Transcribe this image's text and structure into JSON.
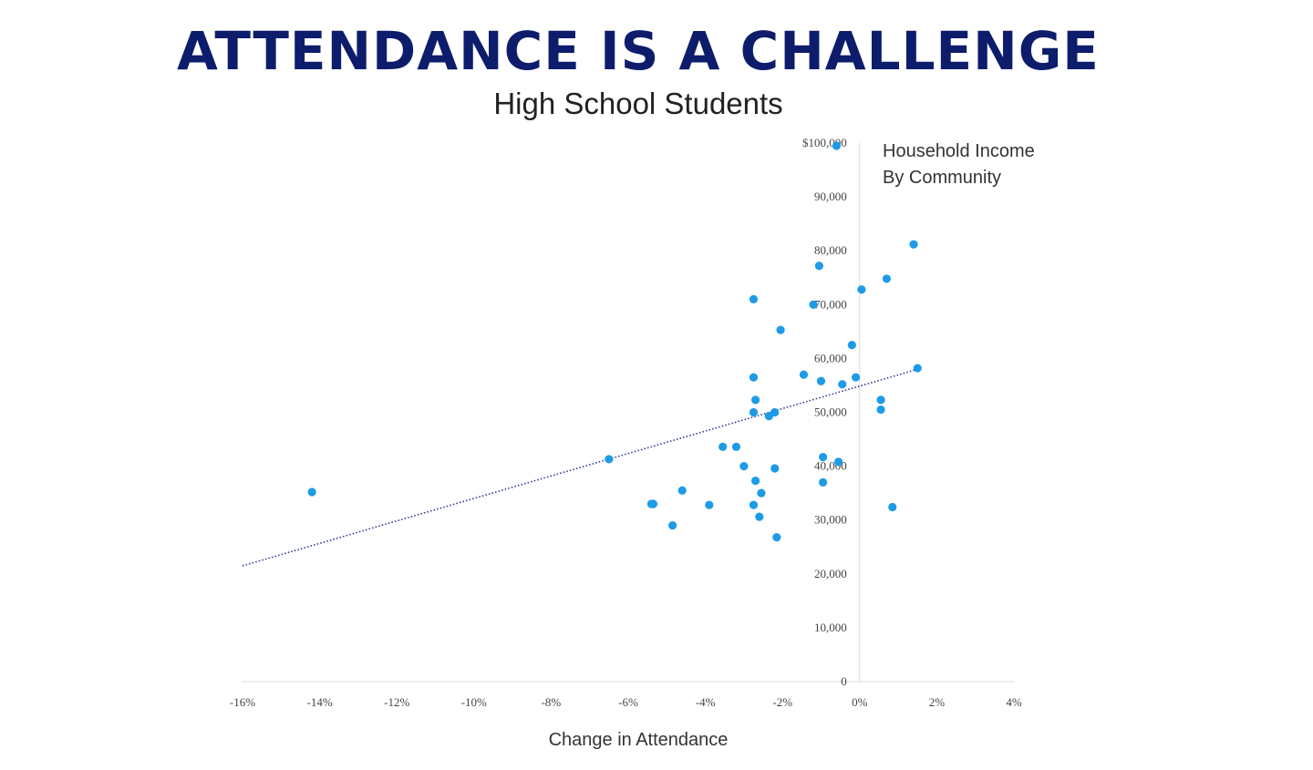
{
  "header": {
    "title": "ATTENDANCE IS A CHALLENGE",
    "subtitle": "High School Students"
  },
  "colors": {
    "title": "#0d1d6b",
    "point": "#1e9be6",
    "trend": "#2a3a8f",
    "axis": "#d8dce6"
  },
  "chart_data": {
    "type": "scatter",
    "xlabel": "Change in Attendance",
    "ylabel": "",
    "annotation": [
      "Household Income",
      "By Community"
    ],
    "xlim": [
      -16,
      4
    ],
    "ylim": [
      0,
      100000
    ],
    "x_ticks": [
      -16,
      -14,
      -12,
      -10,
      -8,
      -6,
      -4,
      -2,
      0,
      2,
      4
    ],
    "x_tick_labels": [
      "-16%",
      "-14%",
      "-12%",
      "-10%",
      "-8%",
      "-6%",
      "-4%",
      "-2%",
      "0%",
      "2%",
      "4%"
    ],
    "y_ticks": [
      0,
      10000,
      20000,
      30000,
      40000,
      50000,
      60000,
      70000,
      80000,
      90000,
      100000
    ],
    "y_tick_labels": [
      "0",
      "10,000",
      "20,000",
      "30,000",
      "40,000",
      "50,000",
      "60,000",
      "70,000",
      "80,000",
      "90,000",
      "$100,000"
    ],
    "grid": false,
    "trendline": {
      "style": "dotted",
      "x": [
        -16,
        1.5
      ],
      "y": [
        21500,
        58000
      ]
    },
    "points": [
      {
        "x": -14.2,
        "y": 35200
      },
      {
        "x": -6.5,
        "y": 41300
      },
      {
        "x": -5.4,
        "y": 33000
      },
      {
        "x": -5.35,
        "y": 33000
      },
      {
        "x": -4.85,
        "y": 29000
      },
      {
        "x": -4.6,
        "y": 35500
      },
      {
        "x": -3.9,
        "y": 32800
      },
      {
        "x": -3.55,
        "y": 43600
      },
      {
        "x": -3.2,
        "y": 43600
      },
      {
        "x": -3.0,
        "y": 40000
      },
      {
        "x": -2.75,
        "y": 71000
      },
      {
        "x": -2.75,
        "y": 56500
      },
      {
        "x": -2.7,
        "y": 52300
      },
      {
        "x": -2.75,
        "y": 50000
      },
      {
        "x": -2.7,
        "y": 37300
      },
      {
        "x": -2.75,
        "y": 32800
      },
      {
        "x": -2.55,
        "y": 35000
      },
      {
        "x": -2.6,
        "y": 30600
      },
      {
        "x": -2.35,
        "y": 49300
      },
      {
        "x": -2.2,
        "y": 50000
      },
      {
        "x": -2.2,
        "y": 39600
      },
      {
        "x": -2.15,
        "y": 26800
      },
      {
        "x": -2.05,
        "y": 65300
      },
      {
        "x": -1.45,
        "y": 57000
      },
      {
        "x": -1.2,
        "y": 70000
      },
      {
        "x": -1.05,
        "y": 77200
      },
      {
        "x": -1.0,
        "y": 55800
      },
      {
        "x": -0.95,
        "y": 41700
      },
      {
        "x": -0.95,
        "y": 37000
      },
      {
        "x": -0.6,
        "y": 99500
      },
      {
        "x": -0.55,
        "y": 40800
      },
      {
        "x": -0.45,
        "y": 55200
      },
      {
        "x": -0.2,
        "y": 62500
      },
      {
        "x": -0.1,
        "y": 56500
      },
      {
        "x": 0.05,
        "y": 72800
      },
      {
        "x": 0.55,
        "y": 52300
      },
      {
        "x": 0.55,
        "y": 50500
      },
      {
        "x": 0.7,
        "y": 74800
      },
      {
        "x": 0.85,
        "y": 32400
      },
      {
        "x": 1.4,
        "y": 81200
      },
      {
        "x": 1.5,
        "y": 58200
      }
    ]
  }
}
